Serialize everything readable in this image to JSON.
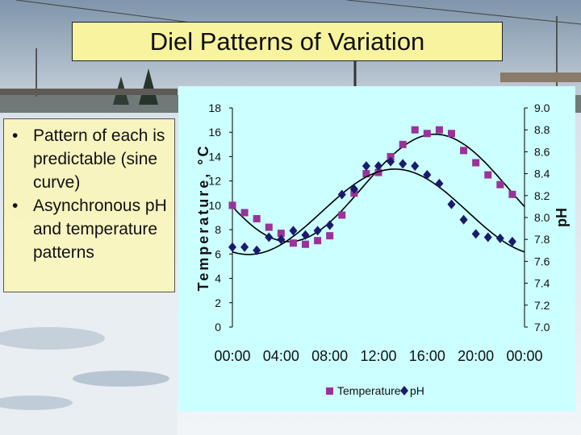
{
  "slide": {
    "title": "Diel Patterns of Variation",
    "bullets": [
      "Pattern of each is predictable (sine curve)",
      "Asynchronous pH and temperature patterns"
    ],
    "bullet_glyph": "•"
  },
  "colors": {
    "title_bg": "#f7f39e",
    "panel_bg": "#ccffff",
    "temperature": "#993399",
    "ph": "#1a1a6e"
  },
  "chart_data": {
    "type": "scatter",
    "title": "",
    "xlabel": "",
    "ylabel": "Temperature, °C",
    "y2label": "pH",
    "x_ticks": [
      "00:00",
      "04:00",
      "08:00",
      "12:00",
      "16:00",
      "20:00",
      "00:00"
    ],
    "x_range_hours": [
      0,
      24
    ],
    "ylim": [
      0,
      18
    ],
    "y_ticks": [
      "0",
      "2",
      "4",
      "6",
      "8",
      "10",
      "12",
      "14",
      "16",
      "18"
    ],
    "y2lim": [
      7.0,
      9.0
    ],
    "y2_ticks": [
      "7.0",
      "7.2",
      "7.4",
      "7.6",
      "7.8",
      "8.0",
      "8.2",
      "8.4",
      "8.6",
      "8.8",
      "9.0"
    ],
    "legend_position": "bottom",
    "series": [
      {
        "name": "Temperature",
        "axis": "left",
        "marker": "square",
        "x_hours": [
          0,
          1,
          2,
          3,
          4,
          5,
          6,
          7,
          8,
          9,
          10,
          11,
          12,
          13,
          14,
          15,
          16,
          17,
          18,
          19,
          20,
          21,
          22,
          23
        ],
        "values": [
          10.0,
          9.4,
          8.9,
          8.2,
          7.7,
          6.9,
          6.8,
          7.1,
          7.5,
          9.2,
          11.0,
          12.6,
          12.7,
          14.0,
          15.0,
          16.2,
          15.9,
          16.2,
          15.9,
          14.5,
          13.5,
          12.5,
          11.7,
          10.9
        ],
        "fit": "sine"
      },
      {
        "name": "pH",
        "axis": "right",
        "marker": "diamond",
        "x_hours": [
          0,
          1,
          2,
          3,
          4,
          5,
          6,
          7,
          8,
          9,
          10,
          11,
          12,
          13,
          14,
          15,
          16,
          17,
          18,
          19,
          20,
          21,
          22,
          23
        ],
        "values": [
          7.73,
          7.73,
          7.7,
          7.82,
          7.8,
          7.88,
          7.84,
          7.88,
          7.93,
          8.21,
          8.26,
          8.47,
          8.47,
          8.51,
          8.49,
          8.47,
          8.39,
          8.31,
          8.12,
          7.98,
          7.85,
          7.82,
          7.81,
          7.78
        ],
        "fit": "sine"
      }
    ]
  }
}
